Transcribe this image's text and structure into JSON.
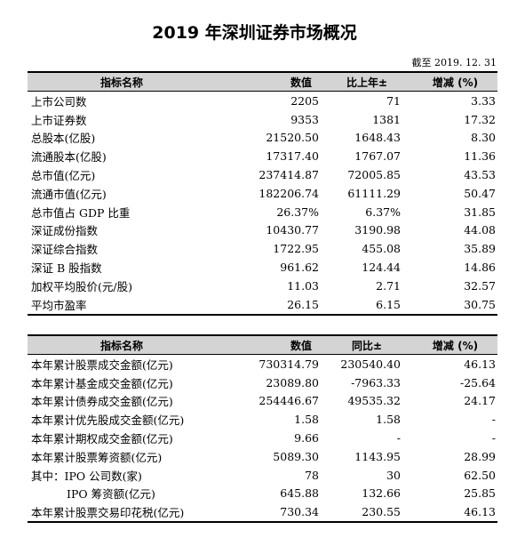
{
  "title": "2019 年深圳证券市场概况",
  "date_note": "截至 2019. 12. 31",
  "table1": {
    "headers": [
      "指标名称",
      "数值",
      "比上年±",
      "增减 (%)"
    ],
    "rows": [
      {
        "name": "上市公司数",
        "value": "2205",
        "change": "71",
        "pct": "3.33"
      },
      {
        "name": "上市证券数",
        "value": "9353",
        "change": "1381",
        "pct": "17.32"
      },
      {
        "name": "总股本(亿股)",
        "value": "21520.50",
        "change": "1648.43",
        "pct": "8.30"
      },
      {
        "name": "流通股本(亿股)",
        "value": "17317.40",
        "change": "1767.07",
        "pct": "11.36"
      },
      {
        "name": "总市值(亿元)",
        "value": "237414.87",
        "change": "72005.85",
        "pct": "43.53"
      },
      {
        "name": "流通市值(亿元)",
        "value": "182206.74",
        "change": "61111.29",
        "pct": "50.47"
      },
      {
        "name": "总市值占 GDP 比重",
        "value": "26.37%",
        "change": "6.37%",
        "pct": "31.85"
      },
      {
        "name": "深证成份指数",
        "value": "10430.77",
        "change": "3190.98",
        "pct": "44.08"
      },
      {
        "name": "深证综合指数",
        "value": "1722.95",
        "change": "455.08",
        "pct": "35.89"
      },
      {
        "name": "深证 B 股指数",
        "value": "961.62",
        "change": "124.44",
        "pct": "14.86"
      },
      {
        "name": "加权平均股价(元/股)",
        "value": "11.03",
        "change": "2.71",
        "pct": "32.57"
      },
      {
        "name": "平均市盈率",
        "value": "26.15",
        "change": "6.15",
        "pct": "30.75"
      }
    ]
  },
  "table2": {
    "headers": [
      "指标名称",
      "数值",
      "同比±",
      "增减 (%)"
    ],
    "rows": [
      {
        "name": "本年累计股票成交金额(亿元)",
        "value": "730314.79",
        "change": "230540.40",
        "pct": "46.13"
      },
      {
        "name": "本年累计基金成交金额(亿元)",
        "value": "23089.80",
        "change": "-7963.33",
        "pct": "-25.64"
      },
      {
        "name": "本年累计债券成交金额(亿元)",
        "value": "254446.67",
        "change": "49535.32",
        "pct": "24.17"
      },
      {
        "name": "本年累计优先股成交金额(亿元)",
        "value": "1.58",
        "change": "1.58",
        "pct": "-"
      },
      {
        "name": "本年累计期权成交金额(亿元)",
        "value": "9.66",
        "change": "-",
        "pct": "-"
      },
      {
        "name": "本年累计股票筹资额(亿元)",
        "value": "5089.30",
        "change": "1143.95",
        "pct": "28.99"
      },
      {
        "name": "其中：IPO 公司数(家)",
        "value": "78",
        "change": "30",
        "pct": "62.50"
      },
      {
        "name": "IPO 筹资额(亿元)",
        "value": "645.88",
        "change": "132.66",
        "pct": "25.85",
        "indent": true
      },
      {
        "name": "本年累计股票交易印花税(亿元)",
        "value": "730.34",
        "change": "230.55",
        "pct": "46.13"
      }
    ]
  }
}
